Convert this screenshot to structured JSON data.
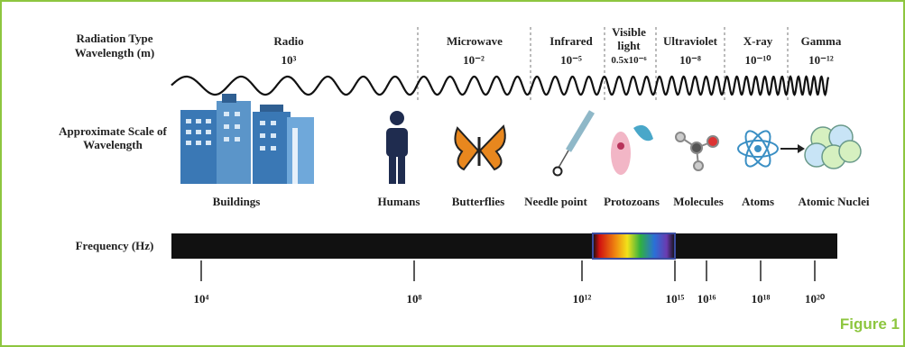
{
  "header": {
    "radiation_type_label": "Radiation Type",
    "wavelength_label": "Wavelength (m)"
  },
  "bands": [
    {
      "name": "Radio",
      "wavelength": "10³"
    },
    {
      "name": "Microwave",
      "wavelength": "10⁻²"
    },
    {
      "name": "Infrared",
      "wavelength": "10⁻⁵"
    },
    {
      "name": "Visible light",
      "wavelength": "0.5x10⁻⁶"
    },
    {
      "name": "Ultraviolet",
      "wavelength": "10⁻⁸"
    },
    {
      "name": "X-ray",
      "wavelength": "10⁻¹⁰"
    },
    {
      "name": "Gamma",
      "wavelength": "10⁻¹²"
    }
  ],
  "scale": {
    "label": "Approximate Scale of Wavelength",
    "objects": [
      "Buildings",
      "Humans",
      "Butterflies",
      "Needle point",
      "Protozoans",
      "Molecules",
      "Atoms",
      "Atomic Nuclei"
    ]
  },
  "frequency": {
    "label": "Frequency (Hz)",
    "ticks": [
      "10⁴",
      "10⁸",
      "10¹²",
      "10¹⁵",
      "10¹⁶",
      "10¹⁸",
      "10²⁰"
    ]
  },
  "figure_label": "Figure 1"
}
